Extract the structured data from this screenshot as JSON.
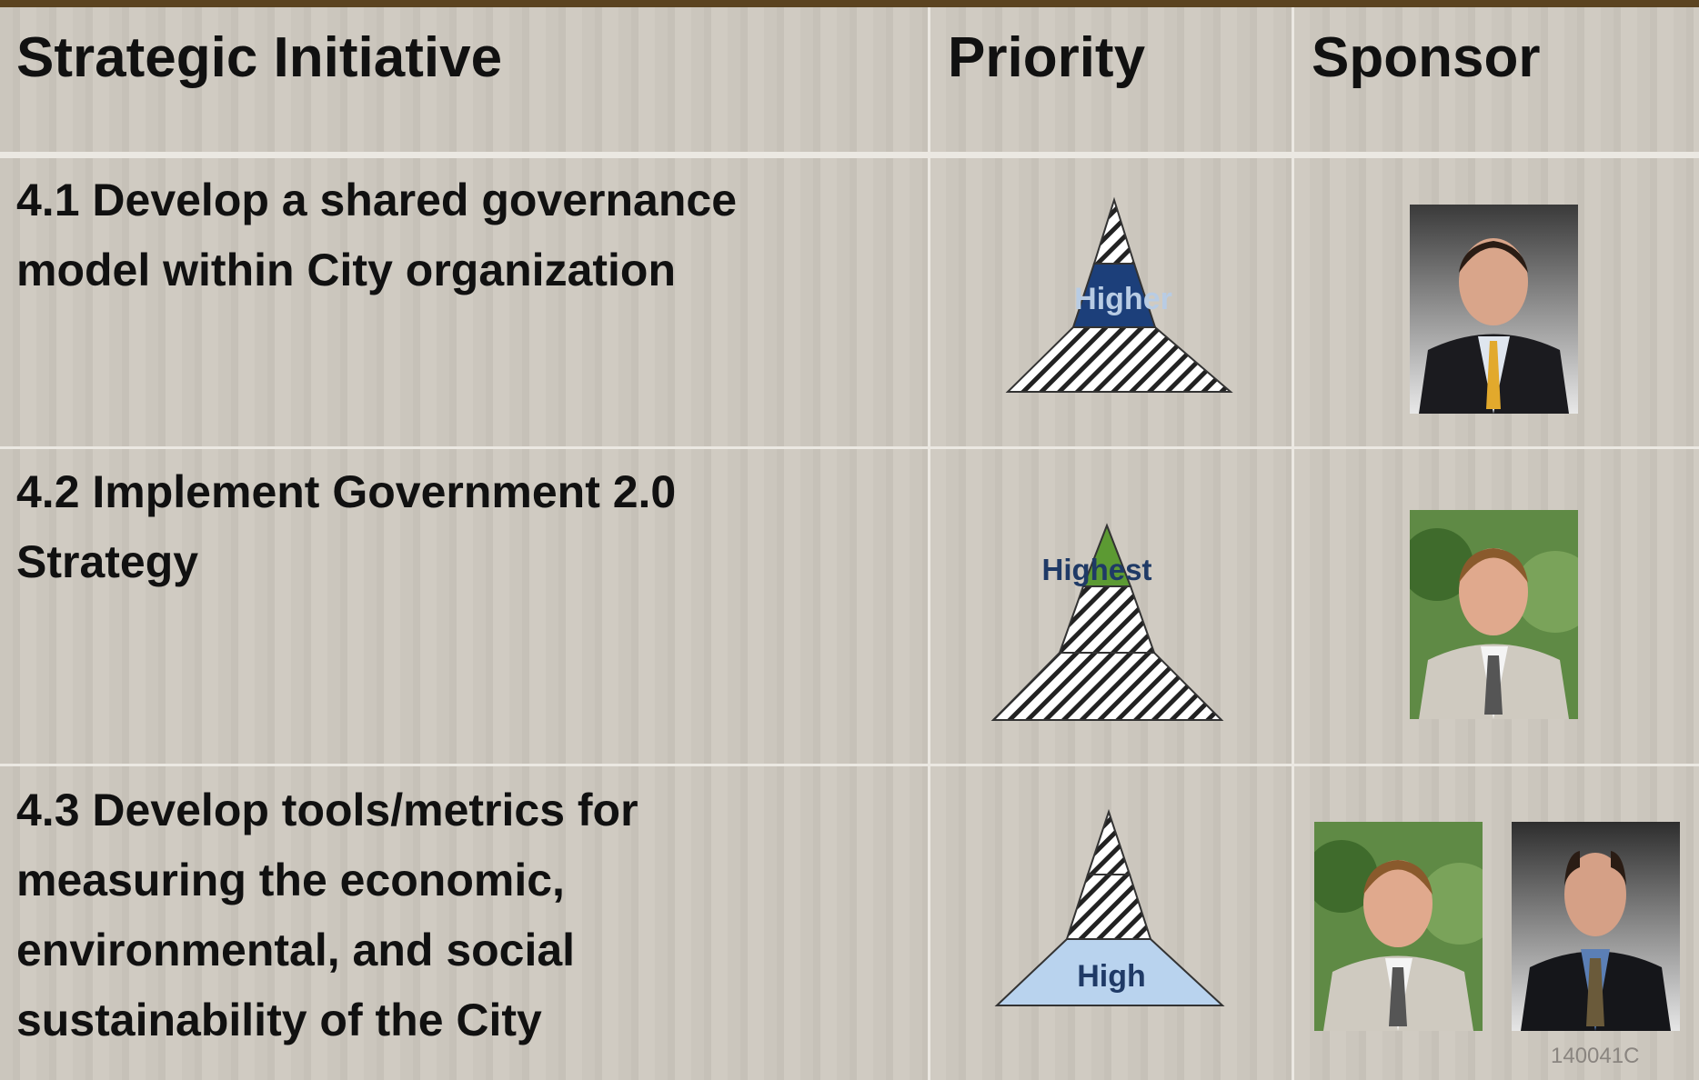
{
  "header": {
    "columns": [
      "Strategic Initiative",
      "Priority",
      "Sponsor"
    ]
  },
  "rows": [
    {
      "initiative_lines": [
        "4.1 Develop a shared governance",
        "model within City organization"
      ],
      "priority": "Higher"
    },
    {
      "initiative_lines": [
        "4.2 Implement Government 2.0",
        "Strategy"
      ],
      "priority": "Highest"
    },
    {
      "initiative_lines": [
        "4.3 Develop tools/metrics for",
        "measuring the economic,",
        "environmental, and social",
        "sustainability of the City"
      ],
      "priority": "High"
    }
  ],
  "footer": {
    "code": "140041C"
  }
}
